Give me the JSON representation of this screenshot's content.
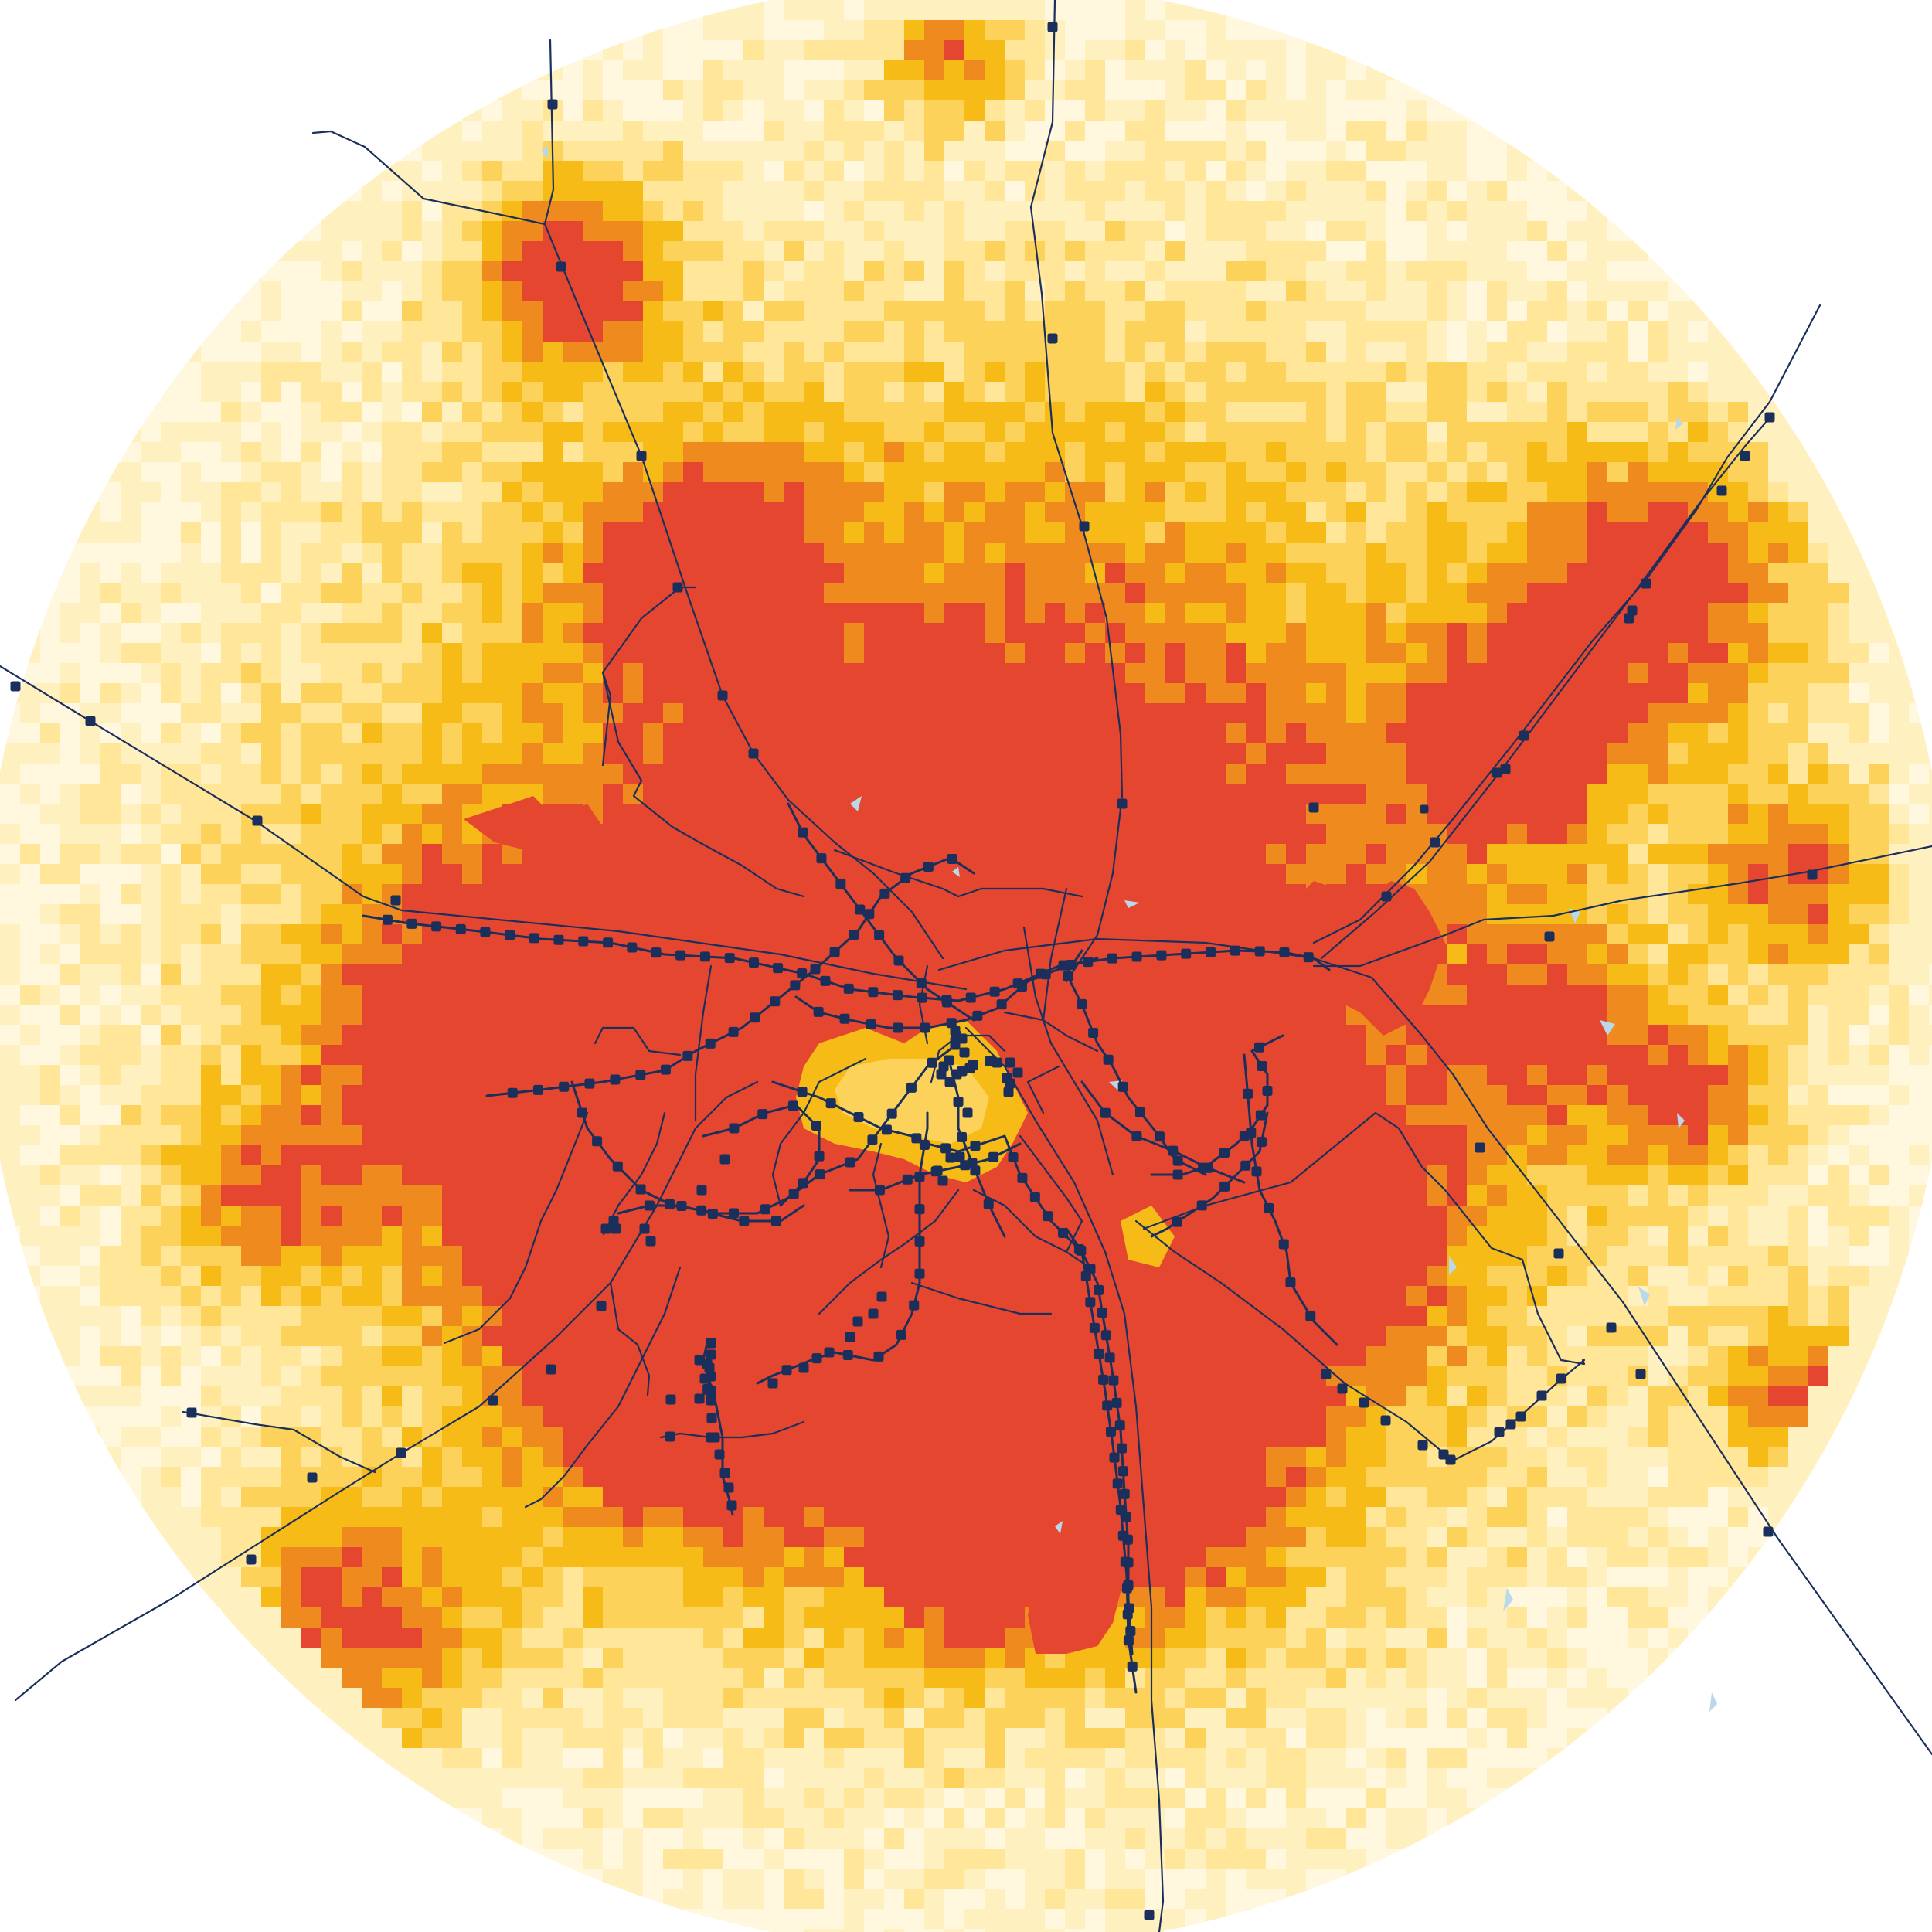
{
  "map": {
    "density_palette": [
      "#ffffff",
      "#fff7de",
      "#fff0bf",
      "#ffe699",
      "#fcd25a",
      "#f6bb17",
      "#ee8a1e",
      "#e5462f"
    ],
    "line_color": "#1b2f5c",
    "water_color": "#b9d8ea",
    "background": "#ffffff"
  }
}
